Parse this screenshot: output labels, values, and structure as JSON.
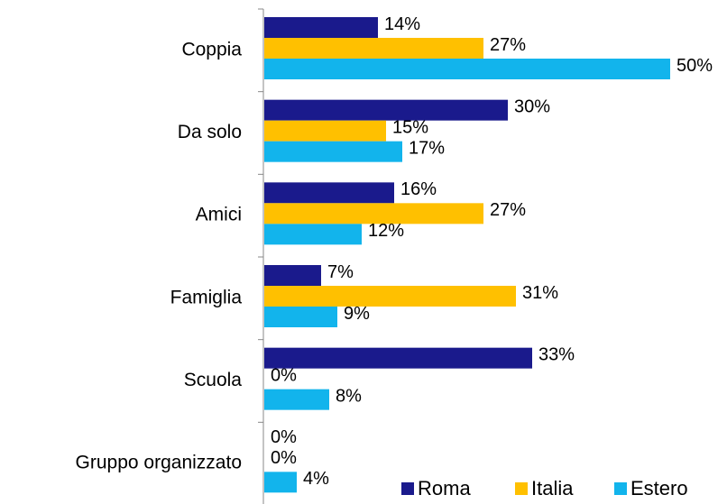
{
  "chart_data": {
    "type": "barh",
    "categories": [
      "Coppia",
      "Da solo",
      "Amici",
      "Famiglia",
      "Scuola",
      "Gruppo organizzato"
    ],
    "series": [
      {
        "name": "Roma",
        "color": "#1a1a8c",
        "values": [
          14,
          30,
          16,
          7,
          33,
          0
        ],
        "value_labels": [
          "14%",
          "30%",
          "16%",
          "7%",
          "33%",
          "0%"
        ]
      },
      {
        "name": "Italia",
        "color": "#ffc000",
        "values": [
          27,
          15,
          27,
          31,
          0,
          0
        ],
        "value_labels": [
          "27%",
          "15%",
          "27%",
          "31%",
          "0%",
          "0%"
        ]
      },
      {
        "name": "Estero",
        "color": "#12b4ec",
        "values": [
          50,
          17,
          12,
          9,
          8,
          4
        ],
        "value_labels": [
          "50%",
          "17%",
          "12%",
          "9%",
          "8%",
          "4%"
        ]
      }
    ],
    "xlim": [
      0,
      50
    ],
    "legend": "lower right"
  }
}
